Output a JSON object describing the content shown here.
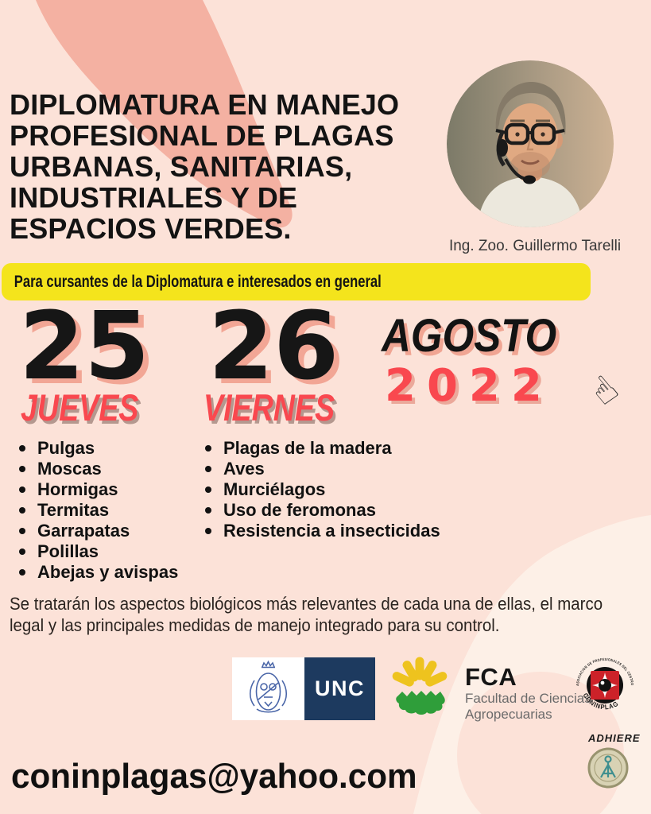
{
  "header": {
    "title_lines": [
      "DIPLOMATURA EN MANEJO",
      "PROFESIONAL DE PLAGAS",
      "URBANAS, SANITARIAS,",
      "INDUSTRIALES Y DE",
      "ESPACIOS VERDES."
    ],
    "speaker_caption": "Ing. Zoo. Guillermo Tarelli"
  },
  "banner": {
    "text": "Para cursantes de la Diplomatura e interesados en general"
  },
  "dates": {
    "day1": {
      "number": "25",
      "weekday": "JUEVES"
    },
    "day2": {
      "number": "26",
      "weekday": "VIERNES"
    },
    "month": "AGOSTO",
    "year": "2022"
  },
  "topics": {
    "day1": [
      "Pulgas",
      "Moscas",
      "Hormigas",
      "Termitas",
      "Garrapatas",
      "Polillas",
      "Abejas y avispas"
    ],
    "day2": [
      "Plagas de la madera",
      "Aves",
      "Murciélagos",
      "Uso de feromonas",
      "Resistencia a insecticidas"
    ]
  },
  "description": "Se tratarán los aspectos biológicos más relevantes de cada una de ellas, el marco legal y las principales medidas de manejo integrado para su control.",
  "logos": {
    "unc": {
      "text": "UNC"
    },
    "fca": {
      "abbr": "FCA",
      "name_line1": "Facultad de Ciencias",
      "name_line2": "Agropecuarias"
    },
    "coninplag": {
      "arc_text": "ASOCIACION DE PROFESIONALES DEL CENTRO",
      "name": "CONINPLAG"
    },
    "adhiere_label": "ADHIERE"
  },
  "contact": {
    "email": "coninplagas@yahoo.com"
  },
  "icons": {
    "hand_pointer": "☝"
  },
  "colors": {
    "background": "#fce2d8",
    "brush_salmon": "#f4b1a2",
    "light_blob": "#fdf0e7",
    "highlight_yellow": "#f4e41c",
    "accent_red": "#f9484f",
    "number_shadow": "#f2a695",
    "unc_navy": "#1d3a5f",
    "fca_yellow": "#eec31e",
    "fca_green": "#2f9e3a",
    "coninplag_red": "#cc2229"
  }
}
